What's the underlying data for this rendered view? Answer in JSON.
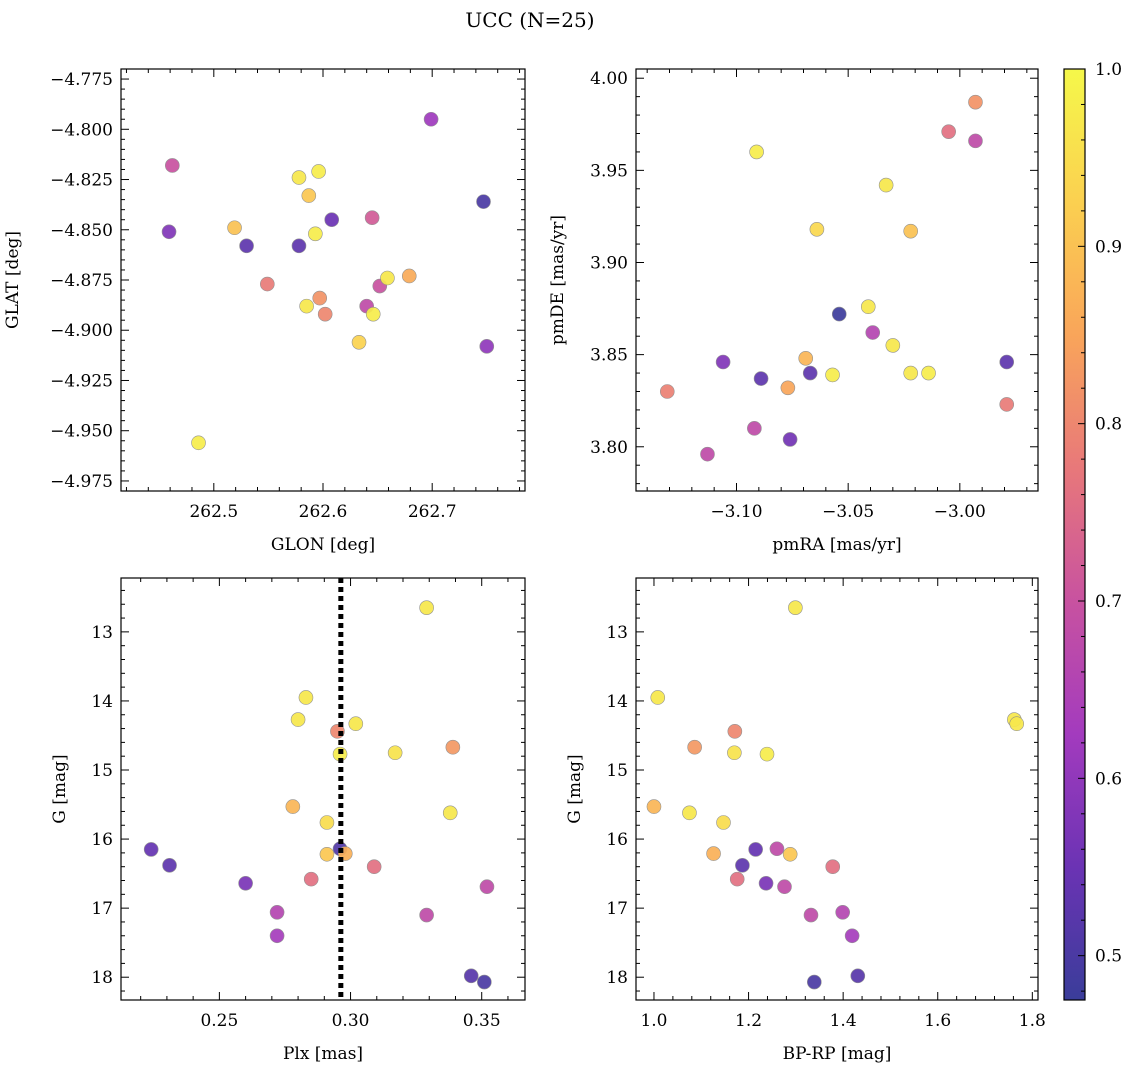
{
  "figure": {
    "title": "UCC (N=25)"
  },
  "colorbar": {
    "min": 0.475,
    "max": 1.0,
    "ticks": [
      0.5,
      0.6,
      0.7,
      0.8,
      0.9,
      1.0
    ],
    "tick_labels": [
      "0.5",
      "0.6",
      "0.7",
      "0.8",
      "0.9",
      "1.0"
    ],
    "colormap": "plasma",
    "colors": [
      "#3a3d9a",
      "#6b33b4",
      "#a33bbe",
      "#c852a0",
      "#e8787a",
      "#f9a55a",
      "#fbd050",
      "#f5f84a"
    ]
  },
  "chart_data": [
    {
      "type": "scatter",
      "name": "glon-glat",
      "xlabel": "GLON [deg]",
      "ylabel": "GLAT [deg]",
      "xlim": [
        262.415,
        262.785
      ],
      "ylim": [
        -4.98,
        -4.77
      ],
      "y_inverted": false,
      "xticks": [
        262.5,
        262.6,
        262.7
      ],
      "xtick_labels": [
        "262.5",
        "262.6",
        "262.7"
      ],
      "yticks": [
        -4.775,
        -4.8,
        -4.825,
        -4.85,
        -4.875,
        -4.9,
        -4.925,
        -4.95,
        -4.975
      ],
      "ytick_labels": [
        "−4.775",
        "−4.800",
        "−4.825",
        "−4.850",
        "−4.875",
        "−4.900",
        "−4.925",
        "−4.950",
        "−4.975"
      ],
      "points": [
        {
          "x": 262.462,
          "y": -4.818,
          "c": 0.7
        },
        {
          "x": 262.459,
          "y": -4.851,
          "c": 0.58
        },
        {
          "x": 262.486,
          "y": -4.956,
          "c": 0.98
        },
        {
          "x": 262.519,
          "y": -4.849,
          "c": 0.9
        },
        {
          "x": 262.53,
          "y": -4.858,
          "c": 0.53
        },
        {
          "x": 262.549,
          "y": -4.877,
          "c": 0.78
        },
        {
          "x": 262.578,
          "y": -4.824,
          "c": 0.97
        },
        {
          "x": 262.578,
          "y": -4.858,
          "c": 0.53
        },
        {
          "x": 262.587,
          "y": -4.833,
          "c": 0.91
        },
        {
          "x": 262.593,
          "y": -4.852,
          "c": 0.98
        },
        {
          "x": 262.596,
          "y": -4.821,
          "c": 0.98
        },
        {
          "x": 262.585,
          "y": -4.888,
          "c": 0.97
        },
        {
          "x": 262.597,
          "y": -4.884,
          "c": 0.82
        },
        {
          "x": 262.602,
          "y": -4.892,
          "c": 0.8
        },
        {
          "x": 262.608,
          "y": -4.845,
          "c": 0.55
        },
        {
          "x": 262.633,
          "y": -4.906,
          "c": 0.93
        },
        {
          "x": 262.645,
          "y": -4.844,
          "c": 0.72
        },
        {
          "x": 262.64,
          "y": -4.888,
          "c": 0.68
        },
        {
          "x": 262.646,
          "y": -4.892,
          "c": 0.98
        },
        {
          "x": 262.652,
          "y": -4.878,
          "c": 0.7
        },
        {
          "x": 262.659,
          "y": -4.874,
          "c": 0.97
        },
        {
          "x": 262.679,
          "y": -4.873,
          "c": 0.86
        },
        {
          "x": 262.699,
          "y": -4.795,
          "c": 0.62
        },
        {
          "x": 262.747,
          "y": -4.836,
          "c": 0.5
        },
        {
          "x": 262.75,
          "y": -4.908,
          "c": 0.6
        }
      ]
    },
    {
      "type": "scatter",
      "name": "pmra-pmde",
      "xlabel": "pmRA [mas/yr]",
      "ylabel": "pmDE [mas/yr]",
      "xlim": [
        -3.145,
        -2.965
      ],
      "ylim": [
        3.776,
        4.005
      ],
      "y_inverted": false,
      "xticks": [
        -3.1,
        -3.05,
        -3.0
      ],
      "xtick_labels": [
        "−3.10",
        "−3.05",
        "−3.00"
      ],
      "yticks": [
        3.8,
        3.85,
        3.9,
        3.95,
        4.0
      ],
      "ytick_labels": [
        "3.80",
        "3.85",
        "3.90",
        "3.95",
        "4.00"
      ],
      "points": [
        {
          "x": -3.131,
          "y": 3.83,
          "c": 0.79
        },
        {
          "x": -3.113,
          "y": 3.796,
          "c": 0.68
        },
        {
          "x": -3.106,
          "y": 3.846,
          "c": 0.58
        },
        {
          "x": -3.092,
          "y": 3.81,
          "c": 0.68
        },
        {
          "x": -3.089,
          "y": 3.837,
          "c": 0.53
        },
        {
          "x": -3.091,
          "y": 3.96,
          "c": 0.98
        },
        {
          "x": -3.077,
          "y": 3.832,
          "c": 0.85
        },
        {
          "x": -3.076,
          "y": 3.804,
          "c": 0.56
        },
        {
          "x": -3.069,
          "y": 3.848,
          "c": 0.88
        },
        {
          "x": -3.067,
          "y": 3.84,
          "c": 0.53
        },
        {
          "x": -3.064,
          "y": 3.918,
          "c": 0.94
        },
        {
          "x": -3.057,
          "y": 3.839,
          "c": 0.98
        },
        {
          "x": -3.054,
          "y": 3.872,
          "c": 0.48
        },
        {
          "x": -3.041,
          "y": 3.876,
          "c": 0.97
        },
        {
          "x": -3.039,
          "y": 3.862,
          "c": 0.66
        },
        {
          "x": -3.033,
          "y": 3.942,
          "c": 0.97
        },
        {
          "x": -3.03,
          "y": 3.855,
          "c": 0.97
        },
        {
          "x": -3.022,
          "y": 3.917,
          "c": 0.9
        },
        {
          "x": -3.022,
          "y": 3.84,
          "c": 0.97
        },
        {
          "x": -3.014,
          "y": 3.84,
          "c": 0.98
        },
        {
          "x": -3.005,
          "y": 3.971,
          "c": 0.76
        },
        {
          "x": -2.993,
          "y": 3.966,
          "c": 0.68
        },
        {
          "x": -2.993,
          "y": 3.987,
          "c": 0.82
        },
        {
          "x": -2.979,
          "y": 3.846,
          "c": 0.53
        },
        {
          "x": -2.979,
          "y": 3.823,
          "c": 0.78
        }
      ]
    },
    {
      "type": "scatter",
      "name": "plx-g",
      "xlabel": "Plx [mas]",
      "ylabel": "G [mag]",
      "xlim": [
        0.2125,
        0.3665
      ],
      "ylim": [
        18.33,
        12.22
      ],
      "y_inverted": true,
      "xticks": [
        0.25,
        0.3,
        0.35
      ],
      "xtick_labels": [
        "0.25",
        "0.30",
        "0.35"
      ],
      "yticks": [
        13,
        14,
        15,
        16,
        17,
        18
      ],
      "ytick_labels": [
        "13",
        "14",
        "15",
        "16",
        "17",
        "18"
      ],
      "vline": 0.2963,
      "points": [
        {
          "x": 0.224,
          "y": 16.15,
          "c": 0.54
        },
        {
          "x": 0.231,
          "y": 16.38,
          "c": 0.53
        },
        {
          "x": 0.26,
          "y": 16.64,
          "c": 0.57
        },
        {
          "x": 0.272,
          "y": 17.06,
          "c": 0.66
        },
        {
          "x": 0.272,
          "y": 17.4,
          "c": 0.63
        },
        {
          "x": 0.278,
          "y": 15.53,
          "c": 0.88
        },
        {
          "x": 0.28,
          "y": 14.27,
          "c": 0.97
        },
        {
          "x": 0.283,
          "y": 13.95,
          "c": 0.97
        },
        {
          "x": 0.285,
          "y": 16.58,
          "c": 0.76
        },
        {
          "x": 0.291,
          "y": 15.76,
          "c": 0.95
        },
        {
          "x": 0.291,
          "y": 16.22,
          "c": 0.91
        },
        {
          "x": 0.295,
          "y": 14.44,
          "c": 0.8
        },
        {
          "x": 0.296,
          "y": 16.14,
          "c": 0.51
        },
        {
          "x": 0.296,
          "y": 14.77,
          "c": 0.98
        },
        {
          "x": 0.298,
          "y": 16.21,
          "c": 0.87
        },
        {
          "x": 0.302,
          "y": 14.33,
          "c": 0.97
        },
        {
          "x": 0.309,
          "y": 16.4,
          "c": 0.76
        },
        {
          "x": 0.317,
          "y": 14.75,
          "c": 0.96
        },
        {
          "x": 0.329,
          "y": 12.65,
          "c": 0.97
        },
        {
          "x": 0.329,
          "y": 17.1,
          "c": 0.68
        },
        {
          "x": 0.338,
          "y": 15.62,
          "c": 0.97
        },
        {
          "x": 0.339,
          "y": 14.67,
          "c": 0.83
        },
        {
          "x": 0.346,
          "y": 17.98,
          "c": 0.52
        },
        {
          "x": 0.351,
          "y": 18.07,
          "c": 0.5
        },
        {
          "x": 0.352,
          "y": 16.69,
          "c": 0.68
        }
      ]
    },
    {
      "type": "scatter",
      "name": "bprp-g",
      "xlabel": "BP-RP [mag]",
      "ylabel": "G [mag]",
      "xlim": [
        0.962,
        1.812
      ],
      "ylim": [
        18.33,
        12.22
      ],
      "y_inverted": true,
      "xticks": [
        1.0,
        1.2,
        1.4,
        1.6,
        1.8
      ],
      "xtick_labels": [
        "1.0",
        "1.2",
        "1.4",
        "1.6",
        "1.8"
      ],
      "yticks": [
        13,
        14,
        15,
        16,
        17,
        18
      ],
      "ytick_labels": [
        "13",
        "14",
        "15",
        "16",
        "17",
        "18"
      ],
      "points": [
        {
          "x": 1.299,
          "y": 12.65,
          "c": 0.97
        },
        {
          "x": 1.008,
          "y": 13.95,
          "c": 0.97
        },
        {
          "x": 1.762,
          "y": 14.27,
          "c": 0.97
        },
        {
          "x": 1.767,
          "y": 14.33,
          "c": 0.97
        },
        {
          "x": 1.171,
          "y": 14.44,
          "c": 0.8
        },
        {
          "x": 1.086,
          "y": 14.67,
          "c": 0.83
        },
        {
          "x": 1.17,
          "y": 14.75,
          "c": 0.96
        },
        {
          "x": 1.239,
          "y": 14.77,
          "c": 0.98
        },
        {
          "x": 1.0,
          "y": 15.53,
          "c": 0.88
        },
        {
          "x": 1.075,
          "y": 15.62,
          "c": 0.97
        },
        {
          "x": 1.147,
          "y": 15.76,
          "c": 0.95
        },
        {
          "x": 1.126,
          "y": 16.21,
          "c": 0.87
        },
        {
          "x": 1.215,
          "y": 16.15,
          "c": 0.54
        },
        {
          "x": 1.26,
          "y": 16.14,
          "c": 0.68
        },
        {
          "x": 1.288,
          "y": 16.22,
          "c": 0.91
        },
        {
          "x": 1.187,
          "y": 16.38,
          "c": 0.53
        },
        {
          "x": 1.378,
          "y": 16.4,
          "c": 0.76
        },
        {
          "x": 1.176,
          "y": 16.58,
          "c": 0.76
        },
        {
          "x": 1.237,
          "y": 16.64,
          "c": 0.57
        },
        {
          "x": 1.276,
          "y": 16.69,
          "c": 0.68
        },
        {
          "x": 1.399,
          "y": 17.06,
          "c": 0.66
        },
        {
          "x": 1.332,
          "y": 17.1,
          "c": 0.68
        },
        {
          "x": 1.419,
          "y": 17.4,
          "c": 0.63
        },
        {
          "x": 1.431,
          "y": 17.98,
          "c": 0.52
        },
        {
          "x": 1.339,
          "y": 18.07,
          "c": 0.5
        }
      ]
    }
  ]
}
